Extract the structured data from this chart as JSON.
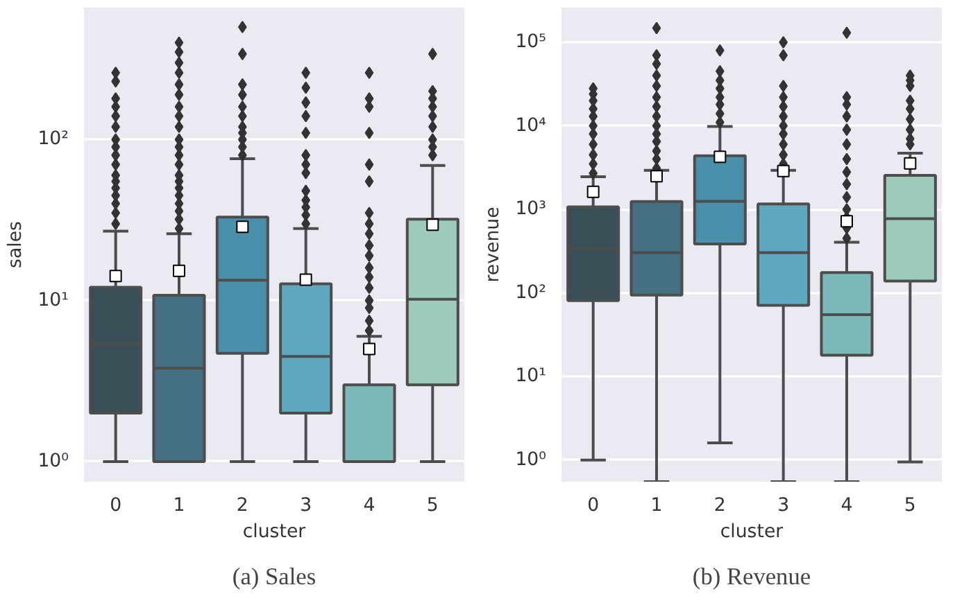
{
  "chart_data": [
    {
      "type": "box",
      "title": "(a) Sales",
      "xlabel": "cluster",
      "ylabel": "sales",
      "categories": [
        "0",
        "1",
        "2",
        "3",
        "4",
        "5"
      ],
      "colors": [
        "#3a4e57",
        "#456f82",
        "#4a8fab",
        "#5fa8c0",
        "#7bb9b9",
        "#9ccbb9"
      ],
      "boxes": [
        {
          "low": 1,
          "q1": 2.0,
          "median": 5.4,
          "q3": 12.1,
          "high": 27,
          "mean": 14.2,
          "outliers": [
            30,
            35,
            40,
            45,
            50,
            55,
            60,
            70,
            80,
            90,
            100,
            120,
            140,
            160,
            180,
            230,
            260
          ]
        },
        {
          "low": 1,
          "q1": 1,
          "median": 3.8,
          "q3": 10.8,
          "high": 26,
          "mean": 15.3,
          "outliers": [
            28,
            32,
            36,
            40,
            45,
            50,
            55,
            60,
            70,
            80,
            90,
            100,
            120,
            140,
            160,
            190,
            220,
            260,
            300,
            350,
            400
          ]
        },
        {
          "low": 1,
          "q1": 4.7,
          "median": 13.4,
          "q3": 33,
          "high": 76,
          "mean": 28.7,
          "outliers": [
            80,
            90,
            100,
            110,
            120,
            140,
            160,
            190,
            220,
            340,
            500
          ]
        },
        {
          "low": 1,
          "q1": 2.0,
          "median": 4.5,
          "q3": 12.7,
          "high": 28,
          "mean": 13.5,
          "outliers": [
            30,
            34,
            38,
            42,
            48,
            62,
            70,
            80,
            110,
            140,
            170,
            210,
            260
          ]
        },
        {
          "low": 1,
          "q1": 1,
          "median": 1,
          "q3": 3.0,
          "high": 6,
          "mean": 5.0,
          "outliers": [
            6.5,
            7.5,
            9,
            10,
            12,
            14,
            16,
            19,
            22,
            26,
            30,
            35,
            55,
            70,
            110,
            160,
            180,
            260
          ]
        },
        {
          "low": 1,
          "q1": 3.0,
          "median": 10.2,
          "q3": 32,
          "high": 69,
          "mean": 29.6,
          "outliers": [
            80,
            90,
            100,
            120,
            140,
            160,
            180,
            200,
            340
          ]
        }
      ],
      "ylim": [
        0.75,
        660
      ],
      "yticks": [
        {
          "value": 1,
          "label": "10⁰"
        },
        {
          "value": 10,
          "label": "10¹"
        },
        {
          "value": 100,
          "label": "10²"
        }
      ],
      "log": true,
      "grid": "y",
      "marker": "diamond"
    },
    {
      "type": "box",
      "title": "(b) Revenue",
      "xlabel": "cluster",
      "ylabel": "revenue",
      "categories": [
        "0",
        "1",
        "2",
        "3",
        "4",
        "5"
      ],
      "colors": [
        "#3a4e57",
        "#456f82",
        "#4a8fab",
        "#5fa8c0",
        "#7bb9b9",
        "#9ccbb9"
      ],
      "boxes": [
        {
          "low": 1,
          "q1": 81,
          "median": 335,
          "q3": 1070,
          "high": 2460,
          "mean": 1620,
          "outliers": [
            2700,
            3500,
            4500,
            6000,
            8000,
            10000,
            13000,
            16000,
            20000,
            24000,
            28000
          ]
        },
        {
          "low": 0.55,
          "q1": 94,
          "median": 303,
          "q3": 1240,
          "high": 2940,
          "mean": 2500,
          "outliers": [
            3100,
            4000,
            5000,
            6500,
            8000,
            10000,
            13000,
            17000,
            22000,
            30000,
            40000,
            55000,
            70000,
            148000
          ]
        },
        {
          "low": 1.6,
          "q1": 385,
          "median": 1250,
          "q3": 4390,
          "high": 9800,
          "mean": 4250,
          "outliers": [
            11000,
            14000,
            18000,
            22000,
            28000,
            35000,
            45000,
            80000
          ]
        },
        {
          "low": 0.55,
          "q1": 71,
          "median": 303,
          "q3": 1160,
          "high": 2940,
          "mean": 2880,
          "outliers": [
            3500,
            4500,
            6000,
            8000,
            10000,
            13000,
            17000,
            22000,
            30000,
            70000,
            100000
          ]
        },
        {
          "low": 0.55,
          "q1": 18,
          "median": 55,
          "q3": 175,
          "high": 405,
          "mean": 720,
          "outliers": [
            450,
            600,
            800,
            1000,
            1400,
            2000,
            2800,
            4000,
            6000,
            9000,
            13000,
            18000,
            22000,
            130000
          ]
        },
        {
          "low": 0.95,
          "q1": 139,
          "median": 775,
          "q3": 2560,
          "high": 4700,
          "mean": 3550,
          "outliers": [
            6000,
            7000,
            9000,
            12000,
            16000,
            20000,
            30000,
            35000,
            40000
          ]
        }
      ],
      "ylim": [
        0.55,
        260000
      ],
      "yticks": [
        {
          "value": 1,
          "label": "10⁰"
        },
        {
          "value": 10,
          "label": "10¹"
        },
        {
          "value": 100,
          "label": "10²"
        },
        {
          "value": 1000,
          "label": "10³"
        },
        {
          "value": 10000,
          "label": "10⁴"
        },
        {
          "value": 100000,
          "label": "10⁵"
        }
      ],
      "log": true,
      "grid": "y",
      "marker": "diamond"
    }
  ]
}
